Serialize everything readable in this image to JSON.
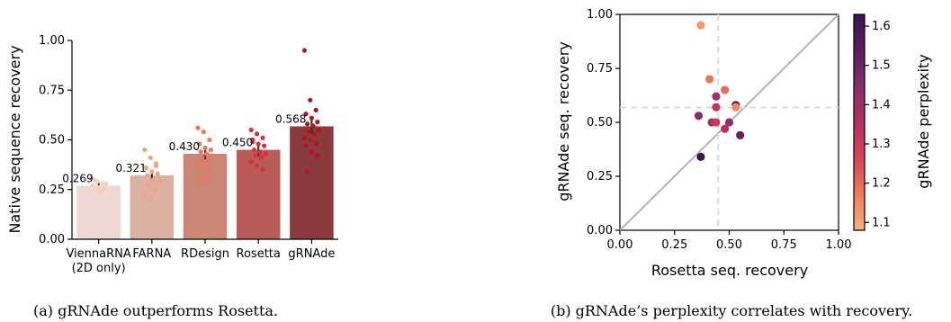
{
  "chart_data": [
    {
      "type": "bar",
      "caption": "(a) gRNAde outperforms Rosetta.",
      "ylabel": "Native sequence recovery",
      "ylim": [
        0,
        1
      ],
      "yticks": [
        "0.00",
        "0.25",
        "0.50",
        "0.75",
        "1.00"
      ],
      "categories": [
        {
          "line1": "ViennaRNA",
          "line2": "(2D only)"
        },
        {
          "line1": "FARNA",
          "line2": ""
        },
        {
          "line1": "RDesign",
          "line2": ""
        },
        {
          "line1": "Rosetta",
          "line2": ""
        },
        {
          "line1": "gRNAde",
          "line2": ""
        }
      ],
      "values": [
        0.269,
        0.321,
        0.43,
        0.45,
        0.568
      ],
      "value_labels": [
        "0.269",
        "0.321",
        "0.430",
        "0.450",
        "0.568"
      ],
      "bar_colors": [
        "#EED8D1",
        "#DCB0A3",
        "#CB8675",
        "#B95C57",
        "#8B3A3D"
      ],
      "point_colors": [
        "#F8CDB9",
        "#F6A07E",
        "#F2735A",
        "#DC2D3A",
        "#AE1421"
      ],
      "points": [
        [
          0.31,
          0.29,
          0.28,
          0.27,
          0.26,
          0.25,
          0.3,
          0.24,
          0.28
        ],
        [
          0.45,
          0.41,
          0.38,
          0.36,
          0.34,
          0.33,
          0.32,
          0.3,
          0.29,
          0.27,
          0.25,
          0.22,
          0.2,
          0.37
        ],
        [
          0.56,
          0.54,
          0.5,
          0.48,
          0.46,
          0.45,
          0.44,
          0.43,
          0.42,
          0.41,
          0.4,
          0.38,
          0.36,
          0.35,
          0.31,
          0.3
        ],
        [
          0.55,
          0.53,
          0.51,
          0.5,
          0.48,
          0.47,
          0.45,
          0.44,
          0.43,
          0.42,
          0.41,
          0.39,
          0.37,
          0.35,
          0.49
        ],
        [
          0.95,
          0.7,
          0.65,
          0.63,
          0.61,
          0.59,
          0.58,
          0.57,
          0.55,
          0.54,
          0.53,
          0.51,
          0.5,
          0.48,
          0.47,
          0.44,
          0.42,
          0.34
        ]
      ]
    },
    {
      "type": "scatter",
      "caption": "(b) gRNAde’s perplexity correlates with recovery.",
      "xlabel": "Rosetta seq. recovery",
      "ylabel": "gRNAde seq. recovery",
      "xlim": [
        0,
        1
      ],
      "ylim": [
        0,
        1
      ],
      "xticks": [
        "0.00",
        "0.25",
        "0.50",
        "0.75",
        "1.00"
      ],
      "yticks": [
        "0.00",
        "0.25",
        "0.50",
        "0.75",
        "1.00"
      ],
      "diagonal": true,
      "mean_lines": {
        "x": 0.45,
        "y": 0.568
      },
      "colorbar": {
        "label": "gRNAde perplexity",
        "range": [
          1.08,
          1.63
        ],
        "ticks": [
          "1.1",
          "1.2",
          "1.3",
          "1.4",
          "1.5",
          "1.6"
        ],
        "tick_values": [
          1.1,
          1.2,
          1.3,
          1.4,
          1.5,
          1.6
        ],
        "stops": [
          "#F6B27A",
          "#EE7B5A",
          "#D9435A",
          "#B42F63",
          "#862F68",
          "#5A1E5E",
          "#3A1550"
        ]
      },
      "points": [
        {
          "x": 0.37,
          "y": 0.95,
          "perplexity": 1.12
        },
        {
          "x": 0.41,
          "y": 0.7,
          "perplexity": 1.18
        },
        {
          "x": 0.48,
          "y": 0.65,
          "perplexity": 1.2
        },
        {
          "x": 0.44,
          "y": 0.62,
          "perplexity": 1.4
        },
        {
          "x": 0.44,
          "y": 0.57,
          "perplexity": 1.33
        },
        {
          "x": 0.53,
          "y": 0.58,
          "perplexity": 1.55
        },
        {
          "x": 0.53,
          "y": 0.57,
          "perplexity": 1.15
        },
        {
          "x": 0.36,
          "y": 0.53,
          "perplexity": 1.45
        },
        {
          "x": 0.42,
          "y": 0.5,
          "perplexity": 1.4
        },
        {
          "x": 0.44,
          "y": 0.5,
          "perplexity": 1.3
        },
        {
          "x": 0.5,
          "y": 0.5,
          "perplexity": 1.43
        },
        {
          "x": 0.48,
          "y": 0.47,
          "perplexity": 1.35
        },
        {
          "x": 0.55,
          "y": 0.44,
          "perplexity": 1.52
        },
        {
          "x": 0.37,
          "y": 0.34,
          "perplexity": 1.62
        }
      ]
    }
  ]
}
